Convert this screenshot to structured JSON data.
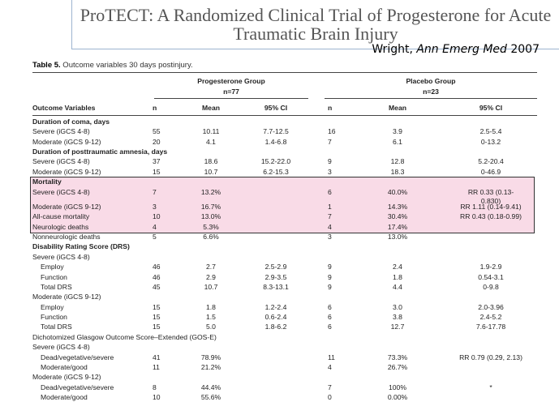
{
  "title_line1": "ProTECT: A Randomized Clinical Trial of Progesterone for Acute",
  "title_line2": "Traumatic Brain Injury",
  "citation": {
    "author": "Wright, ",
    "journal": "Ann Emerg Med",
    "year": " 2007"
  },
  "caption_label": "Table 5.",
  "caption_text": " Outcome variables 30 days postinjury.",
  "group_prog": "Progesterone Group",
  "n_prog": "n=77",
  "group_plac": "Placebo Group",
  "n_plac": "n=23",
  "columns": [
    "Outcome Variables",
    "n",
    "Mean",
    "95% CI",
    "n",
    "Mean",
    "95% CI"
  ],
  "rows": [
    {
      "label": "Duration of coma, days",
      "bold": true,
      "indent": 0,
      "pn": "",
      "pm": "",
      "pci": "",
      "qn": "",
      "qm": "",
      "qci": ""
    },
    {
      "label": "Severe (iGCS 4-8)",
      "indent": 0,
      "pn": "55",
      "pm": "10.11",
      "pci": "7.7-12.5",
      "qn": "16",
      "qm": "3.9",
      "qci": "2.5-5.4"
    },
    {
      "label": "Moderate (iGCS 9-12)",
      "indent": 0,
      "pn": "20",
      "pm": "4.1",
      "pci": "1.4-6.8",
      "qn": "7",
      "qm": "6.1",
      "qci": "0-13.2"
    },
    {
      "label": "Duration of posttraumatic amnesia, days",
      "bold": true,
      "indent": 0,
      "pn": "",
      "pm": "",
      "pci": "",
      "qn": "",
      "qm": "",
      "qci": ""
    },
    {
      "label": "Severe (iGCS 4-8)",
      "indent": 0,
      "pn": "37",
      "pm": "18.6",
      "pci": "15.2-22.0",
      "qn": "9",
      "qm": "12.8",
      "qci": "5.2-20.4"
    },
    {
      "label": "Moderate (iGCS 9-12)",
      "indent": 0,
      "pn": "15",
      "pm": "10.7",
      "pci": "6.2-15.3",
      "qn": "3",
      "qm": "18.3",
      "qci": "0-46.9"
    },
    {
      "label": "Mortality",
      "bold": true,
      "indent": 0,
      "pn": "",
      "pm": "",
      "pci": "",
      "qn": "",
      "qm": "",
      "qci": ""
    },
    {
      "label": "Severe (iGCS 4-8)",
      "indent": 0,
      "pn": "7",
      "pm": "13.2%",
      "pci": "",
      "qn": "6",
      "qm": "40.0%",
      "qci": "RR 0.33 (0.13-",
      "qci2": "0.830)"
    },
    {
      "label": "Moderate (iGCS 9-12)",
      "indent": 0,
      "pn": "3",
      "pm": "16.7%",
      "pci": "",
      "qn": "1",
      "qm": "14.3%",
      "qci": "RR 1.11 (0.14-9.41)"
    },
    {
      "label": "All-cause mortality",
      "indent": 0,
      "pn": "10",
      "pm": "13.0%",
      "pci": "",
      "qn": "7",
      "qm": "30.4%",
      "qci": "RR 0.43 (0.18-0.99)"
    },
    {
      "label": "Neurologic deaths",
      "indent": 0,
      "pn": "4",
      "pm": "5.3%",
      "pci": "",
      "qn": "4",
      "qm": "17.4%",
      "qci": ""
    },
    {
      "label": "Nonneurologic deaths",
      "indent": 0,
      "pn": "5",
      "pm": "6.6%",
      "pci": "",
      "qn": "3",
      "qm": "13.0%",
      "qci": ""
    },
    {
      "label": "Disability Rating Score (DRS)",
      "bold": true,
      "indent": 0,
      "pn": "",
      "pm": "",
      "pci": "",
      "qn": "",
      "qm": "",
      "qci": ""
    },
    {
      "label": "Severe (iGCS 4-8)",
      "indent": 0,
      "pn": "",
      "pm": "",
      "pci": "",
      "qn": "",
      "qm": "",
      "qci": ""
    },
    {
      "label": "Employ",
      "indent": 1,
      "pn": "46",
      "pm": "2.7",
      "pci": "2.5-2.9",
      "qn": "9",
      "qm": "2.4",
      "qci": "1.9-2.9"
    },
    {
      "label": "Function",
      "indent": 1,
      "pn": "46",
      "pm": "2.9",
      "pci": "2.9-3.5",
      "qn": "9",
      "qm": "1.8",
      "qci": "0.54-3.1"
    },
    {
      "label": "Total DRS",
      "indent": 1,
      "pn": "45",
      "pm": "10.7",
      "pci": "8.3-13.1",
      "qn": "9",
      "qm": "4.4",
      "qci": "0-9.8"
    },
    {
      "label": "Moderate (iGCS 9-12)",
      "indent": 0,
      "pn": "",
      "pm": "",
      "pci": "",
      "qn": "",
      "qm": "",
      "qci": ""
    },
    {
      "label": "Employ",
      "indent": 1,
      "pn": "15",
      "pm": "1.8",
      "pci": "1.2-2.4",
      "qn": "6",
      "qm": "3.0",
      "qci": "2.0-3.96"
    },
    {
      "label": "Function",
      "indent": 1,
      "pn": "15",
      "pm": "1.5",
      "pci": "0.6-2.4",
      "qn": "6",
      "qm": "3.8",
      "qci": "2.4-5.2"
    },
    {
      "label": "Total DRS",
      "indent": 1,
      "pn": "15",
      "pm": "5.0",
      "pci": "1.8-6.2",
      "qn": "6",
      "qm": "12.7",
      "qci": "7.6-17.78"
    },
    {
      "label": "Dichotomized Glasgow Outcome Score–Extended (GOS-E)",
      "indent": 0,
      "pn": "",
      "pm": "",
      "pci": "",
      "qn": "",
      "qm": "",
      "qci": ""
    },
    {
      "label": "Severe (iGCS 4-8)",
      "indent": 0,
      "pn": "",
      "pm": "",
      "pci": "",
      "qn": "",
      "qm": "",
      "qci": ""
    },
    {
      "label": "Dead/vegetative/severe",
      "indent": 1,
      "pn": "41",
      "pm": "78.9%",
      "pci": "",
      "qn": "11",
      "qm": "73.3%",
      "qci": "RR 0.79 (0.29, 2.13)"
    },
    {
      "label": "Moderate/good",
      "indent": 1,
      "pn": "11",
      "pm": "21.2%",
      "pci": "",
      "qn": "4",
      "qm": "26.7%",
      "qci": ""
    },
    {
      "label": "Moderate (iGCS 9-12)",
      "indent": 0,
      "pn": "",
      "pm": "",
      "pci": "",
      "qn": "",
      "qm": "",
      "qci": ""
    },
    {
      "label": "Dead/vegetative/severe",
      "indent": 1,
      "pn": "8",
      "pm": "44.4%",
      "pci": "",
      "qn": "7",
      "qm": "100%",
      "qci": "*"
    },
    {
      "label": "Moderate/good",
      "indent": 1,
      "pn": "10",
      "pm": "55.6%",
      "pci": "",
      "qn": "0",
      "qm": "0.00%",
      "qci": ""
    }
  ],
  "highlight_color": "#f9dbe7"
}
